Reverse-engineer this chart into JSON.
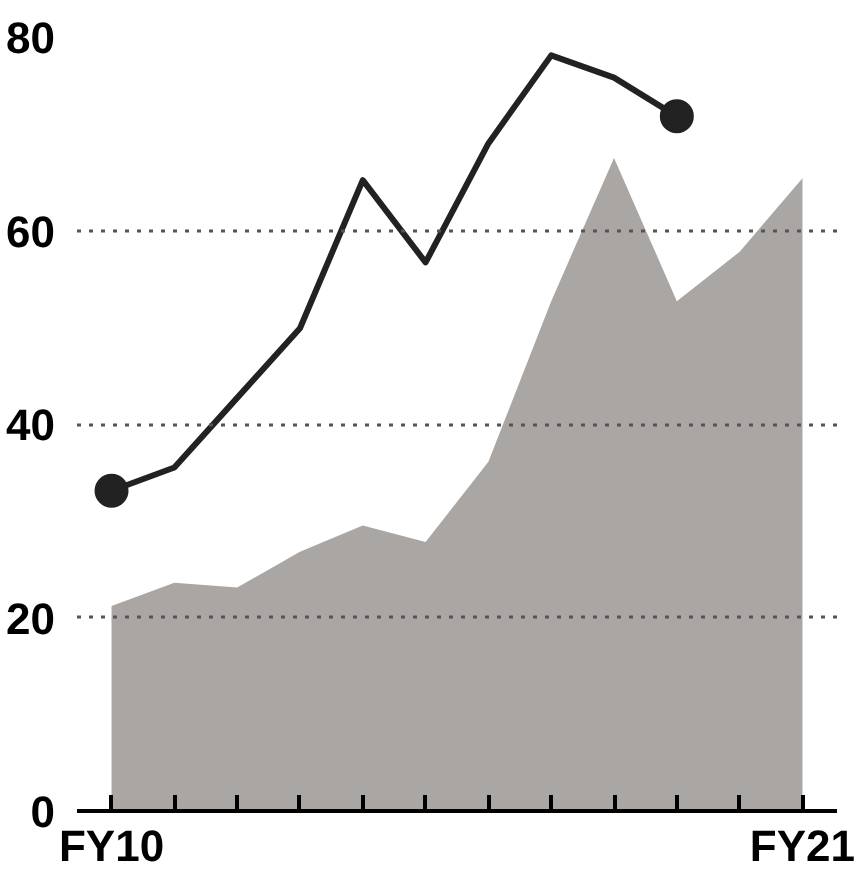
{
  "chart_data": {
    "type": "line",
    "categories": [
      "FY10",
      null,
      null,
      null,
      null,
      null,
      null,
      null,
      null,
      null,
      null,
      "FY21"
    ],
    "series": [
      {
        "type": "area",
        "color": "#a9a6a3",
        "values": [
          21.2,
          23.6,
          23.1,
          26.8,
          29.5,
          27.8,
          36.1,
          52.7,
          67.5,
          52.7,
          57.8,
          65.4
        ]
      },
      {
        "color": "#222222",
        "values": [
          33.1,
          35.5,
          42.7,
          49.9,
          65.2,
          56.7,
          69.0,
          78.1,
          75.8,
          71.8,
          null,
          null
        ]
      },
      {
        "type": "scatter",
        "color": "#222222",
        "values": [
          33.1,
          null,
          null,
          null,
          null,
          null,
          null,
          null,
          null,
          71.8,
          null,
          null
        ]
      }
    ],
    "ylim": [
      0,
      80
    ],
    "yticks": [
      0,
      20,
      40,
      60,
      80
    ],
    "grid": "y",
    "line_style": "solid"
  }
}
